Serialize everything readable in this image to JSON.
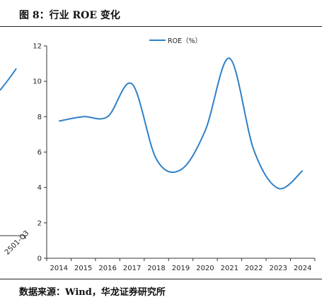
{
  "header": {
    "title": "图 8：行业 ROE 变化"
  },
  "footer": {
    "source": "数据来源：Wind，华龙证券研究所"
  },
  "left_fragment": {
    "tick_label": "2501-Q3"
  },
  "colors": {
    "line": "#2f80c7",
    "axis": "#333333",
    "text": "#222222"
  },
  "chart_data": {
    "type": "line",
    "title": "",
    "xlabel": "",
    "ylabel": "",
    "categories": [
      "2014",
      "2015",
      "2016",
      "2017",
      "2018",
      "2019",
      "2020",
      "2021",
      "2022",
      "2023",
      "2024"
    ],
    "series": [
      {
        "name": "ROE（%）",
        "values": [
          7.75,
          8.0,
          8.0,
          9.85,
          5.6,
          5.0,
          7.2,
          11.3,
          6.1,
          3.95,
          4.95
        ]
      }
    ],
    "ylim": [
      0,
      12
    ],
    "yticks": [
      0,
      2,
      4,
      6,
      8,
      10,
      12
    ],
    "grid": false,
    "legend": "top-center",
    "smooth": true
  }
}
